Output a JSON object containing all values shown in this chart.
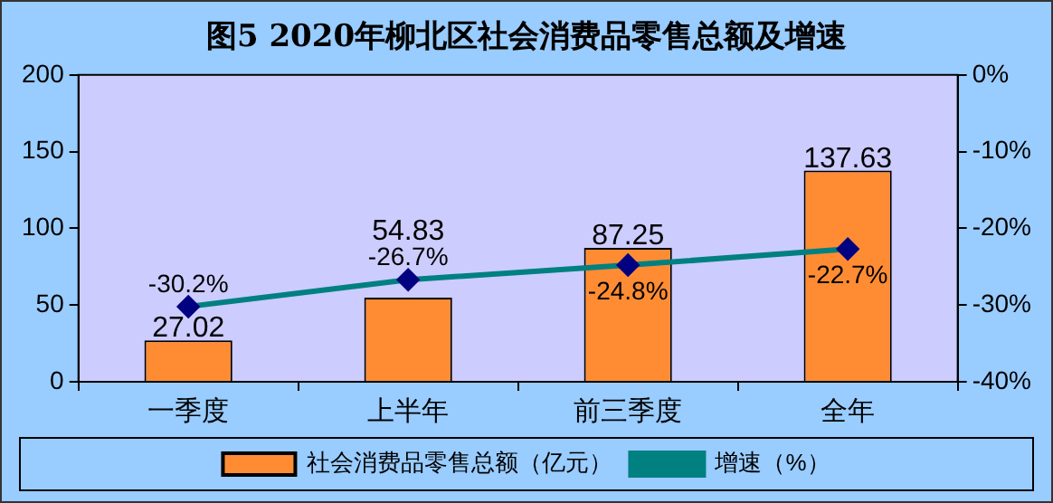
{
  "chart_data": {
    "type": "bar",
    "title": "图5 2020年柳北区社会消费品零售总额及增速",
    "categories": [
      "一季度",
      "上半年",
      "前三季度",
      "全年"
    ],
    "series": [
      {
        "name": "社会消费品零售总额（亿元）",
        "color": "#ff8c33",
        "values": [
          27.02,
          54.83,
          87.25,
          137.63
        ],
        "value_labels": [
          "27.02",
          "54.83",
          "87.25",
          "137.63"
        ]
      },
      {
        "name": "增速（%）",
        "type": "line",
        "axis": "y2",
        "color": "#008080",
        "marker": "diamond",
        "values": [
          -30.2,
          -26.7,
          -24.8,
          -22.7
        ],
        "value_labels": [
          "-30.2%",
          "-26.7%",
          "-24.8%",
          "-22.7%"
        ]
      }
    ],
    "ylim": [
      0,
      200
    ],
    "yticks": [
      0,
      50,
      100,
      150,
      200
    ],
    "y2lim": [
      -40,
      0
    ],
    "y2ticks": [
      {
        "value": -40,
        "label": "-40%"
      },
      {
        "value": -30,
        "label": "-30%"
      },
      {
        "value": -20,
        "label": "-20%"
      },
      {
        "value": -10,
        "label": "-10%"
      },
      {
        "value": 0,
        "label": "0%"
      }
    ],
    "grid": false,
    "legend": "bottom"
  }
}
